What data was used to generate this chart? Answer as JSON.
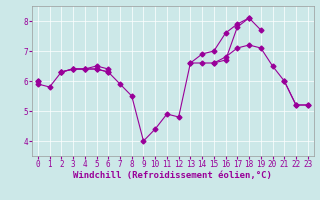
{
  "background_color": "#cce8e8",
  "line_color": "#990099",
  "marker": "D",
  "marker_size": 2.5,
  "linewidth": 0.8,
  "xlabel": "Windchill (Refroidissement éolien,°C)",
  "xlabel_fontsize": 6.5,
  "tick_fontsize": 5.5,
  "xlim": [
    -0.5,
    23.5
  ],
  "ylim": [
    3.5,
    8.5
  ],
  "yticks": [
    4,
    5,
    6,
    7,
    8
  ],
  "xticks": [
    0,
    1,
    2,
    3,
    4,
    5,
    6,
    7,
    8,
    9,
    10,
    11,
    12,
    13,
    14,
    15,
    16,
    17,
    18,
    19,
    20,
    21,
    22,
    23
  ],
  "series": [
    [
      5.9,
      5.8,
      6.3,
      6.4,
      6.4,
      6.4,
      6.3,
      5.9,
      5.5,
      4.0,
      4.4,
      4.9,
      4.8,
      6.6,
      6.6,
      6.6,
      6.8,
      7.1,
      7.2,
      7.1,
      6.5,
      6.0,
      5.2,
      5.2
    ],
    [
      6.0,
      null,
      6.3,
      6.4,
      6.4,
      6.4,
      6.3,
      null,
      null,
      null,
      null,
      null,
      null,
      6.6,
      6.9,
      7.0,
      7.6,
      7.9,
      8.1,
      7.7,
      null,
      null,
      null,
      null
    ],
    [
      6.0,
      null,
      6.3,
      6.4,
      6.4,
      6.5,
      6.4,
      null,
      null,
      null,
      null,
      null,
      null,
      null,
      null,
      6.6,
      6.7,
      7.8,
      8.1,
      null,
      null,
      null,
      null,
      null
    ],
    [
      null,
      null,
      null,
      null,
      null,
      null,
      null,
      null,
      null,
      null,
      null,
      null,
      null,
      null,
      null,
      null,
      null,
      null,
      null,
      null,
      null,
      6.0,
      5.2,
      5.2
    ]
  ]
}
